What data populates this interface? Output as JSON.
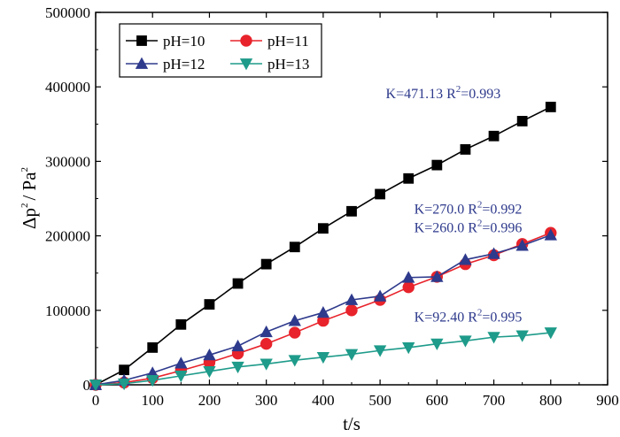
{
  "chart_data": {
    "type": "line",
    "xlabel": "t/s",
    "ylabel_parts": [
      "Δp",
      "2",
      "/ Pa",
      "2"
    ],
    "xlim": [
      0,
      900
    ],
    "ylim": [
      0,
      500000
    ],
    "x_ticks": [
      "0",
      "100",
      "200",
      "300",
      "400",
      "500",
      "600",
      "700",
      "800",
      "900"
    ],
    "y_ticks": [
      "0",
      "100000",
      "200000",
      "300000",
      "400000",
      "500000"
    ],
    "x_tick_values": [
      0,
      100,
      200,
      300,
      400,
      500,
      600,
      700,
      800,
      900
    ],
    "y_tick_values": [
      0,
      100000,
      200000,
      300000,
      400000,
      500000
    ],
    "legend_position": "top-left",
    "grid": false,
    "x": [
      0,
      50,
      100,
      150,
      200,
      250,
      300,
      350,
      400,
      450,
      500,
      550,
      600,
      650,
      700,
      750,
      800
    ],
    "series": [
      {
        "name": "pH=10",
        "marker": "square",
        "color": "#000000",
        "values": [
          0,
          20000,
          50000,
          81000,
          108000,
          136000,
          162000,
          185000,
          210000,
          233000,
          256000,
          277000,
          295000,
          316000,
          334000,
          354000,
          373000
        ]
      },
      {
        "name": "pH=11",
        "marker": "circle",
        "color": "#E8232B",
        "values": [
          0,
          3000,
          9000,
          19000,
          30000,
          42000,
          55000,
          70000,
          86000,
          100000,
          114000,
          131000,
          145000,
          162000,
          174000,
          189000,
          204000
        ]
      },
      {
        "name": "pH=12",
        "marker": "triangle-up",
        "color": "#2E3A8C",
        "values": [
          0,
          6000,
          16000,
          29000,
          40000,
          52000,
          71000,
          86000,
          97000,
          114000,
          119000,
          144000,
          145000,
          168000,
          176000,
          187000,
          201000
        ]
      },
      {
        "name": "pH=13",
        "marker": "triangle-down",
        "color": "#1E9B8A",
        "values": [
          0,
          1500,
          6000,
          12000,
          18000,
          24000,
          28000,
          33000,
          37000,
          41000,
          46000,
          50000,
          55000,
          59000,
          64000,
          66000,
          70000
        ]
      }
    ],
    "annotations": [
      {
        "k": "K=471.13",
        "r": "R",
        "sup": "2",
        "val": "=0.993",
        "at": [
          510,
          385000
        ]
      },
      {
        "k": "K=270.0",
        "r": "R",
        "sup": "2",
        "val": "=0.992",
        "at": [
          560,
          230000
        ]
      },
      {
        "k": "K=260.0",
        "r": "R",
        "sup": "2",
        "val": "=0.996",
        "at": [
          560,
          205000
        ]
      },
      {
        "k": "K=92.40",
        "r": "R",
        "sup": "2",
        "val": "=0.995",
        "at": [
          560,
          85000
        ]
      }
    ]
  }
}
